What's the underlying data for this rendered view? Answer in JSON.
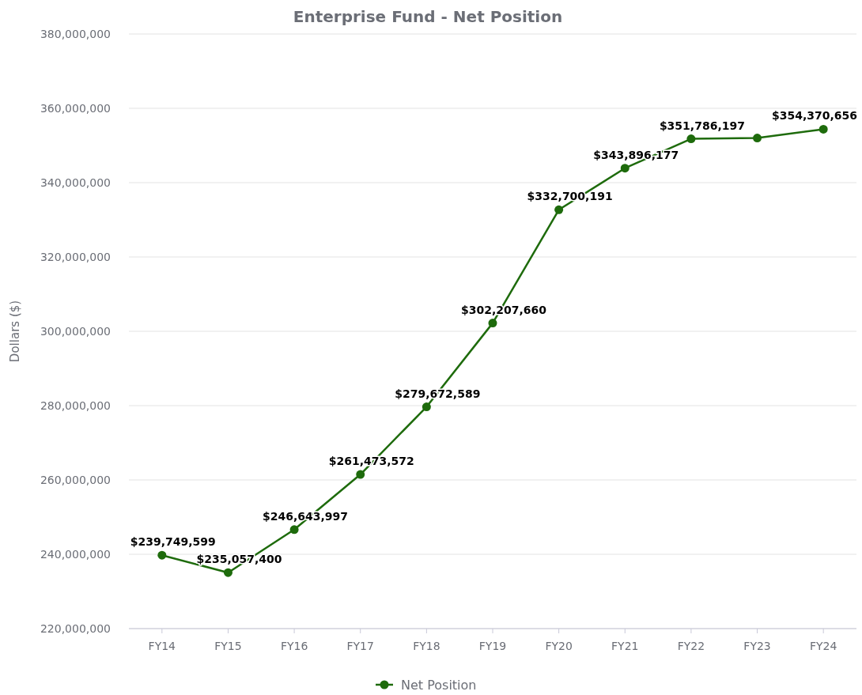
{
  "chart_data": {
    "type": "line",
    "title": "Enterprise Fund - Net Position",
    "ylabel": "Dollars ($)",
    "categories": [
      "FY14",
      "FY15",
      "FY16",
      "FY17",
      "FY18",
      "FY19",
      "FY20",
      "FY21",
      "FY22",
      "FY23",
      "FY24"
    ],
    "series": [
      {
        "name": "Net Position",
        "color": "#1e6b0c",
        "values": [
          239749599,
          235057400,
          246643997,
          261473572,
          279672589,
          302207660,
          332700191,
          343896177,
          351786197,
          352000000,
          354370656
        ],
        "value_labels": [
          "$239,749,599",
          "$235,057,400",
          "$246,643,997",
          "$261,473,572",
          "$279,672,589",
          "$302,207,660",
          "$332,700,191",
          "$343,896,177",
          "$351,786,197",
          null,
          "$354,370,656"
        ]
      }
    ],
    "ylim": [
      220000000,
      380000000
    ],
    "yticks": [
      {
        "value": 220000000,
        "label": "220,000,000"
      },
      {
        "value": 240000000,
        "label": "240,000,000"
      },
      {
        "value": 260000000,
        "label": "260,000,000"
      },
      {
        "value": 280000000,
        "label": "280,000,000"
      },
      {
        "value": 300000000,
        "label": "300,000,000"
      },
      {
        "value": 320000000,
        "label": "320,000,000"
      },
      {
        "value": 340000000,
        "label": "340,000,000"
      },
      {
        "value": 360000000,
        "label": "360,000,000"
      },
      {
        "value": 380000000,
        "label": "380,000,000"
      }
    ],
    "grid": "y",
    "legend": "bottom",
    "marker": "circle",
    "line_style": "solid"
  }
}
